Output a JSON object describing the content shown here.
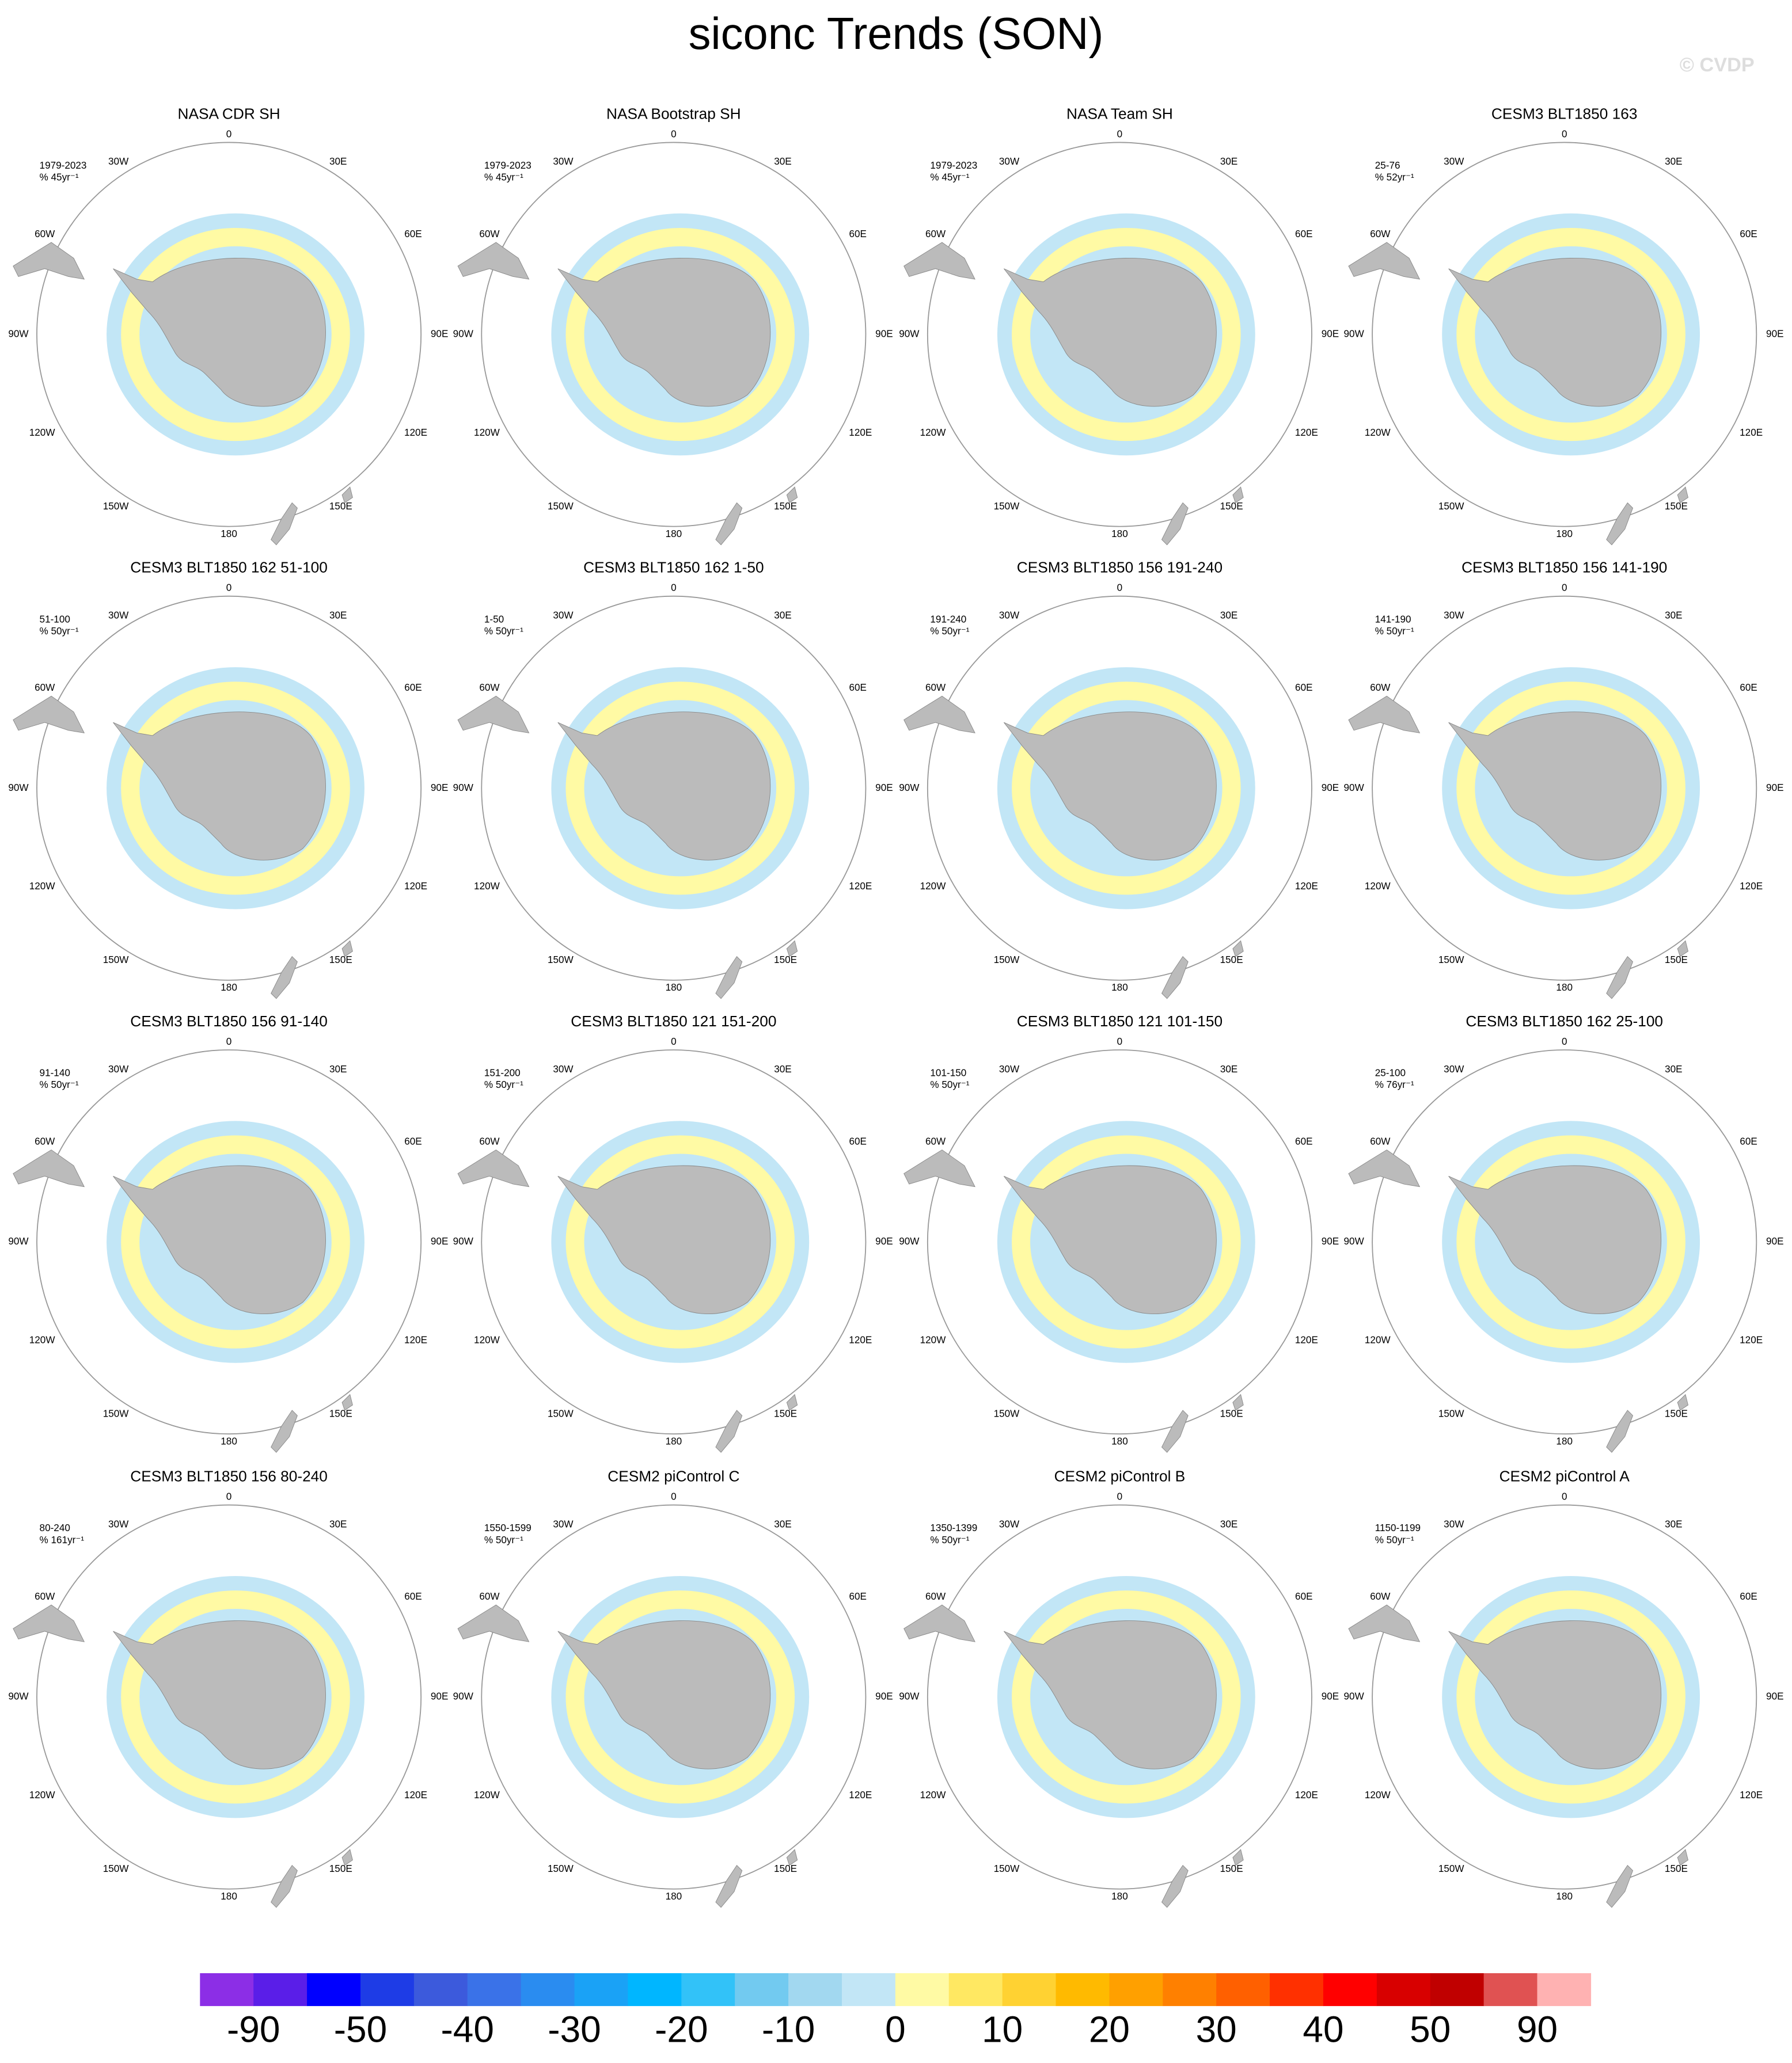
{
  "title": "siconc Trends (SON)",
  "watermark": "© CVDP",
  "lon_labels": [
    "0",
    "30W",
    "30E",
    "60W",
    "60E",
    "90W",
    "90E",
    "120W",
    "120E",
    "150W",
    "150E",
    "180"
  ],
  "panels": [
    {
      "title": "NASA CDR SH",
      "period": "1979-2023",
      "units": "% 45yr⁻¹"
    },
    {
      "title": "NASA Bootstrap SH",
      "period": "1979-2023",
      "units": "% 45yr⁻¹"
    },
    {
      "title": "NASA Team SH",
      "period": "1979-2023",
      "units": "% 45yr⁻¹"
    },
    {
      "title": "CESM3 BLT1850 163",
      "period": "25-76",
      "units": "% 52yr⁻¹"
    },
    {
      "title": "CESM3 BLT1850 162 51-100",
      "period": "51-100",
      "units": "% 50yr⁻¹"
    },
    {
      "title": "CESM3 BLT1850 162 1-50",
      "period": "1-50",
      "units": "% 50yr⁻¹"
    },
    {
      "title": "CESM3 BLT1850 156 191-240",
      "period": "191-240",
      "units": "% 50yr⁻¹"
    },
    {
      "title": "CESM3 BLT1850 156 141-190",
      "period": "141-190",
      "units": "% 50yr⁻¹"
    },
    {
      "title": "CESM3 BLT1850 156 91-140",
      "period": "91-140",
      "units": "% 50yr⁻¹"
    },
    {
      "title": "CESM3 BLT1850 121 151-200",
      "period": "151-200",
      "units": "% 50yr⁻¹"
    },
    {
      "title": "CESM3 BLT1850 121 101-150",
      "period": "101-150",
      "units": "% 50yr⁻¹"
    },
    {
      "title": "CESM3 BLT1850 162 25-100",
      "period": "25-100",
      "units": "% 76yr⁻¹"
    },
    {
      "title": "CESM3 BLT1850 156 80-240",
      "period": "80-240",
      "units": "% 161yr⁻¹"
    },
    {
      "title": "CESM2 piControl C",
      "period": "1550-1599",
      "units": "% 50yr⁻¹"
    },
    {
      "title": "CESM2 piControl B",
      "period": "1350-1399",
      "units": "% 50yr⁻¹"
    },
    {
      "title": "CESM2 piControl A",
      "period": "1150-1199",
      "units": "% 50yr⁻¹"
    }
  ],
  "colorbar": {
    "colors": [
      "#8c2ee6",
      "#5a1ee8",
      "#0000ff",
      "#1e3ce6",
      "#3c5adc",
      "#3a72e8",
      "#2a8cf0",
      "#1aa2f6",
      "#00b6ff",
      "#32c2f8",
      "#72caf0",
      "#a2d8f0",
      "#c2e6f6",
      "#fffaa4",
      "#ffe862",
      "#ffd232",
      "#ffba00",
      "#ffa000",
      "#ff8000",
      "#ff6000",
      "#ff3000",
      "#ff0000",
      "#d80000",
      "#c00000",
      "#e05252",
      "#ffb2b2"
    ],
    "labels": [
      -90,
      -50,
      -40,
      -30,
      -20,
      -10,
      0,
      10,
      20,
      30,
      40,
      50,
      90
    ]
  }
}
